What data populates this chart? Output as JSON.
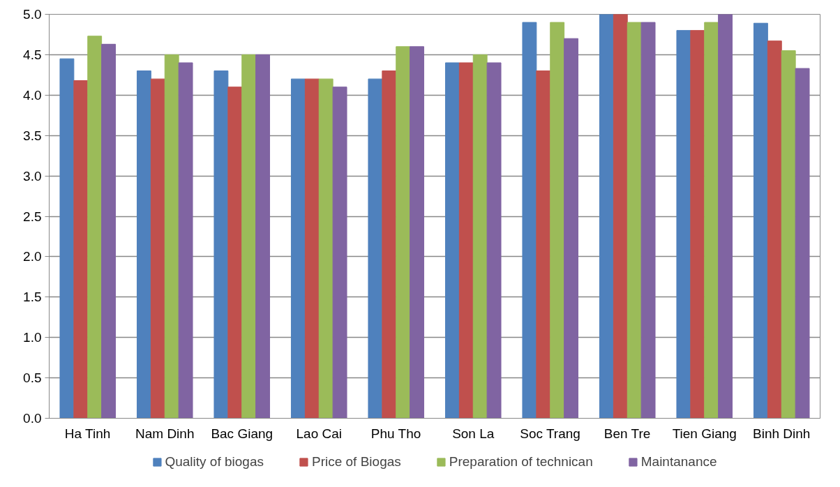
{
  "chart_data": {
    "type": "bar",
    "categories": [
      "Ha Tinh",
      "Nam Dinh",
      "Bac Giang",
      "Lao Cai",
      "Phu Tho",
      "Son La",
      "Soc Trang",
      "Ben Tre",
      "Tien Giang",
      "Binh Dinh"
    ],
    "series": [
      {
        "name": "Quality of biogas",
        "color": "#4f81bd",
        "values": [
          4.45,
          4.3,
          4.3,
          4.2,
          4.2,
          4.4,
          4.9,
          5.0,
          4.8,
          4.89
        ]
      },
      {
        "name": "Price of Biogas",
        "color": "#c0504d",
        "values": [
          4.18,
          4.2,
          4.1,
          4.2,
          4.3,
          4.4,
          4.3,
          5.0,
          4.8,
          4.67
        ]
      },
      {
        "name": "Preparation of technican",
        "color": "#9bbb59",
        "values": [
          4.73,
          4.5,
          4.5,
          4.2,
          4.6,
          4.5,
          4.9,
          4.9,
          4.9,
          4.55
        ]
      },
      {
        "name": "Maintanance",
        "color": "#8064a2",
        "values": [
          4.63,
          4.4,
          4.5,
          4.1,
          4.6,
          4.4,
          4.7,
          4.9,
          5.0,
          4.33
        ]
      }
    ],
    "ylim": [
      0,
      5
    ],
    "yticks": [
      {
        "value": 0,
        "label": "0.0"
      },
      {
        "value": 0.5,
        "label": "0.5"
      },
      {
        "value": 1,
        "label": "1.0"
      },
      {
        "value": 1.5,
        "label": "1.5"
      },
      {
        "value": 2,
        "label": "2.0"
      },
      {
        "value": 2.5,
        "label": "2.5"
      },
      {
        "value": 3,
        "label": "3.0"
      },
      {
        "value": 3.5,
        "label": "3.5"
      },
      {
        "value": 4,
        "label": "4.0"
      },
      {
        "value": 4.5,
        "label": "4.5"
      },
      {
        "value": 5,
        "label": "5.0"
      }
    ],
    "grid": "y",
    "legend": "bottom"
  }
}
